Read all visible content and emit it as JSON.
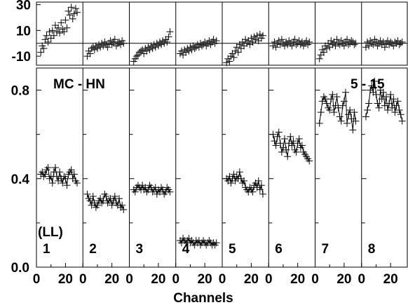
{
  "chart_data": {
    "type": "scatter",
    "xlabel": "Channels",
    "annotations": {
      "main": "MC - HN",
      "energy": "5 - 15",
      "ll": "(LL)"
    },
    "panel_labels": [
      "1",
      "2",
      "3",
      "4",
      "5",
      "6",
      "7",
      "8"
    ],
    "x_range": [
      0,
      32
    ],
    "x_ticks": [
      0,
      20
    ],
    "main_ylim": [
      0.0,
      0.9
    ],
    "main_yticks": [
      0.0,
      0.4,
      0.8
    ],
    "main_ytick_labels": [
      "0.0",
      "0.4",
      "0.8"
    ],
    "top_ylim": [
      -17,
      32
    ],
    "top_yticks": [
      -10,
      10,
      30
    ],
    "top_ytick_labels": [
      "-10",
      "10",
      "30"
    ],
    "top_reference_y": 0,
    "x": [
      3,
      4,
      5,
      6,
      7,
      8,
      9,
      10,
      11,
      12,
      13,
      14,
      15,
      16,
      17,
      18,
      19,
      20,
      21,
      22,
      23,
      24,
      25,
      26,
      27,
      28
    ],
    "series": [
      {
        "values": [
          0.42,
          0.43,
          0.41,
          0.42,
          0.44,
          0.45,
          0.4,
          0.41,
          0.38,
          0.43,
          0.45,
          0.41,
          0.39,
          0.43,
          0.4,
          0.38,
          0.41,
          0.4,
          0.37,
          0.42,
          0.43,
          0.44,
          0.4,
          0.42,
          0.39,
          0.38
        ],
        "deviation": [
          -7,
          -2,
          -4,
          3,
          6,
          1,
          9,
          4,
          10,
          6,
          14,
          9,
          12,
          8,
          16,
          11,
          9,
          18,
          12,
          25,
          22,
          28,
          19,
          23,
          27,
          24
        ]
      },
      {
        "values": [
          0.33,
          0.31,
          0.3,
          0.28,
          0.32,
          0.29,
          0.27,
          0.28,
          0.3,
          0.31,
          0.29,
          0.3,
          0.33,
          0.32,
          0.29,
          0.3,
          0.31,
          0.28,
          0.3,
          0.32,
          0.29,
          0.28,
          0.31,
          0.27,
          0.28,
          0.26
        ],
        "deviation": [
          -10,
          -6,
          -8,
          -4,
          -3,
          -5,
          -2,
          -4,
          -1,
          -3,
          0,
          -2,
          1,
          -1,
          -3,
          0,
          2,
          -1,
          1,
          3,
          -2,
          0,
          1,
          -1,
          2,
          0
        ]
      },
      {
        "values": [
          0.35,
          0.34,
          0.36,
          0.37,
          0.36,
          0.35,
          0.37,
          0.35,
          0.36,
          0.34,
          0.35,
          0.37,
          0.36,
          0.34,
          0.35,
          0.36,
          0.33,
          0.35,
          0.34,
          0.36,
          0.35,
          0.33,
          0.34,
          0.36,
          0.35,
          0.34
        ],
        "deviation": [
          -14,
          -12,
          -10,
          -9,
          -7,
          -6,
          -5,
          -8,
          -4,
          -6,
          -3,
          -5,
          -2,
          -4,
          -1,
          -3,
          0,
          -2,
          1,
          -1,
          2,
          0,
          3,
          1,
          5,
          9
        ]
      },
      {
        "values": [
          0.12,
          0.11,
          0.13,
          0.12,
          0.11,
          0.12,
          0.13,
          0.11,
          0.12,
          0.11,
          0.1,
          0.12,
          0.11,
          0.12,
          0.1,
          0.11,
          0.12,
          0.11,
          0.1,
          0.11,
          0.12,
          0.11,
          0.1,
          0.11,
          0.1,
          0.11
        ],
        "deviation": [
          -8,
          -6,
          -9,
          -5,
          -7,
          -4,
          -6,
          -3,
          -5,
          -2,
          -4,
          -3,
          -1,
          -3,
          0,
          -2,
          -1,
          1,
          -2,
          0,
          2,
          -1,
          1,
          3,
          0,
          2
        ]
      },
      {
        "values": [
          0.4,
          0.39,
          0.41,
          0.38,
          0.4,
          0.42,
          0.39,
          0.41,
          0.4,
          0.43,
          0.4,
          0.38,
          0.39,
          0.36,
          0.35,
          0.34,
          0.36,
          0.35,
          0.34,
          0.37,
          0.38,
          0.36,
          0.39,
          0.35,
          0.37,
          0.33
        ],
        "deviation": [
          -15,
          -12,
          -14,
          -10,
          -8,
          -11,
          -6,
          -3,
          -7,
          -1,
          -4,
          1,
          -2,
          3,
          0,
          2,
          -1,
          4,
          1,
          5,
          3,
          6,
          2,
          7,
          4,
          6
        ]
      },
      {
        "values": [
          0.6,
          0.57,
          0.55,
          0.59,
          0.61,
          0.56,
          0.52,
          0.54,
          0.58,
          0.53,
          0.5,
          0.56,
          0.59,
          0.55,
          0.57,
          0.53,
          0.52,
          0.56,
          0.58,
          0.54,
          0.55,
          0.52,
          0.51,
          0.5,
          0.49,
          0.48
        ],
        "deviation": [
          -2,
          1,
          -3,
          0,
          2,
          -1,
          3,
          0,
          -2,
          1,
          -1,
          2,
          0,
          -2,
          1,
          3,
          -1,
          0,
          2,
          -1,
          1,
          -2,
          0,
          2,
          -1,
          1
        ]
      },
      {
        "values": [
          0.65,
          0.7,
          0.75,
          0.77,
          0.76,
          0.74,
          0.72,
          0.71,
          0.76,
          0.78,
          0.7,
          0.73,
          0.77,
          0.72,
          0.68,
          0.66,
          0.73,
          0.75,
          0.79,
          0.65,
          0.69,
          0.71,
          0.67,
          0.62,
          0.7,
          0.66
        ],
        "deviation": [
          -12,
          -9,
          -5,
          -7,
          -2,
          -4,
          0,
          -3,
          2,
          -1,
          1,
          -2,
          3,
          0,
          -1,
          2,
          0,
          -2,
          1,
          3,
          -1,
          0,
          2,
          1,
          -1,
          0
        ]
      },
      {
        "values": [
          0.68,
          0.71,
          0.74,
          0.8,
          0.82,
          0.79,
          0.84,
          0.78,
          0.74,
          0.72,
          0.8,
          0.76,
          0.79,
          0.73,
          0.77,
          0.71,
          0.74,
          0.78,
          0.72,
          0.76,
          0.7,
          0.73,
          0.75,
          0.71,
          0.69,
          0.66
        ],
        "deviation": [
          -3,
          1,
          -2,
          2,
          0,
          -1,
          3,
          1,
          -2,
          0,
          2,
          -1,
          1,
          -3,
          0,
          2,
          -1,
          1,
          0,
          -2,
          1,
          0,
          2,
          -1,
          0,
          1
        ]
      }
    ]
  }
}
